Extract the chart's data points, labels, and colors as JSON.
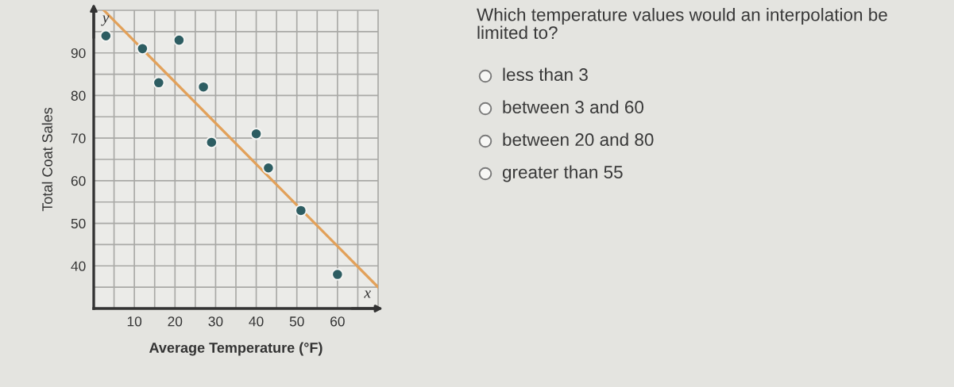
{
  "chart_data": [
    {
      "type": "scatter",
      "xlabel": "Average Temperature (°F)",
      "ylabel": "Total Coat Sales",
      "annotations": [
        "y",
        "x"
      ],
      "series": [
        {
          "type": "scatter",
          "x": [
            3,
            12,
            16,
            21,
            27,
            29,
            40,
            43,
            51,
            60
          ],
          "values": [
            94,
            91,
            83,
            93,
            82,
            69,
            71,
            63,
            53,
            38
          ],
          "color": "#2d5d62",
          "marker": "circle"
        },
        {
          "type": "line",
          "x": [
            2.5,
            70
          ],
          "values": [
            100,
            35
          ],
          "color": "#e2a15a",
          "line_style": "solid"
        }
      ],
      "xlim": [
        0,
        70
      ],
      "ylim": [
        30,
        100
      ],
      "xticks": [
        {
          "value": 5,
          "label": null
        },
        10,
        {
          "value": 15,
          "label": null
        },
        20,
        {
          "value": 25,
          "label": null
        },
        30,
        {
          "value": 35,
          "label": null
        },
        40,
        {
          "value": 45,
          "label": null
        },
        50,
        {
          "value": 55,
          "label": null
        },
        60,
        {
          "value": 65,
          "label": null
        }
      ],
      "yticks": [
        {
          "value": 35,
          "label": null
        },
        40,
        {
          "value": 45,
          "label": null
        },
        50,
        {
          "value": 55,
          "label": null
        },
        60,
        {
          "value": 65,
          "label": null
        },
        70,
        {
          "value": 75,
          "label": null
        },
        80,
        {
          "value": 85,
          "label": null
        },
        90,
        {
          "value": 95,
          "label": null
        }
      ],
      "grid": true
    },
    {
      "type": "other",
      "title": "Which temperature values would an interpolation be limited to?",
      "annotations": [
        "less than 3",
        "between 3 and 60",
        "between 20 and 80",
        "greater than 55"
      ]
    }
  ]
}
